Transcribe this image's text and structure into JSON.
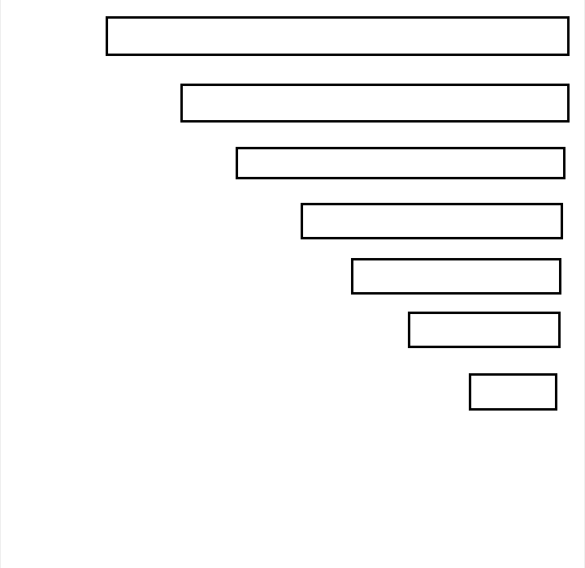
{
  "colors": {
    "background": "#ffffff",
    "box_border": "#000000",
    "box_fill": "#ffffff"
  },
  "boxes": [
    {
      "label": ""
    },
    {
      "label": ""
    },
    {
      "label": ""
    },
    {
      "label": ""
    },
    {
      "label": ""
    },
    {
      "label": ""
    },
    {
      "label": ""
    }
  ]
}
